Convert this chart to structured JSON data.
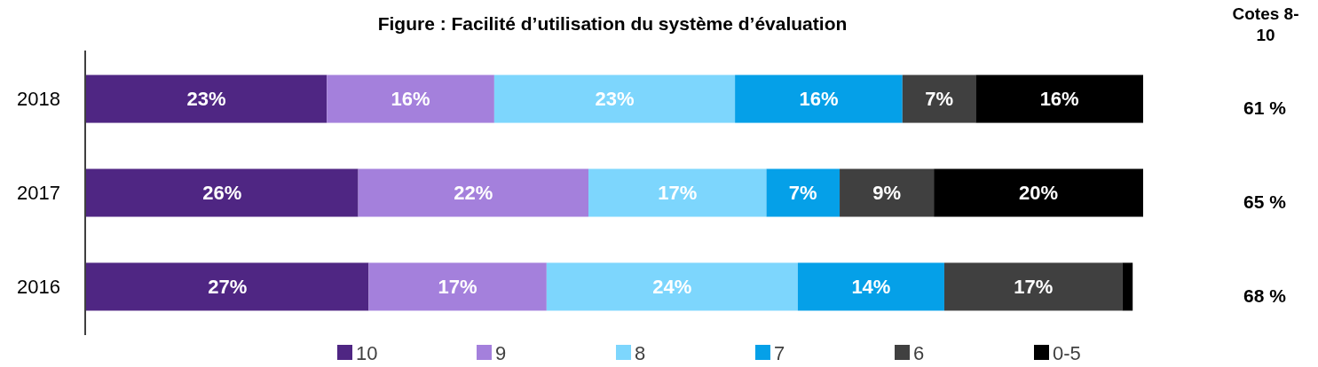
{
  "chart_data": {
    "type": "bar",
    "title": "Figure : Facilité d’utilisation du système d’évaluation",
    "orientation": "horizontal",
    "stacked": true,
    "categories": [
      "2018",
      "2017",
      "2016"
    ],
    "xlim": [
      0,
      101
    ],
    "tick_labels": "y",
    "legend": "bottom",
    "series": [
      {
        "name": "10",
        "color": "#4f2683",
        "values": [
          23,
          26,
          27
        ],
        "value_labels": [
          "23%",
          "26%",
          "27%"
        ]
      },
      {
        "name": "9",
        "color": "#a480dc",
        "values": [
          16,
          22,
          17
        ],
        "value_labels": [
          "16%",
          "22%",
          "17%"
        ]
      },
      {
        "name": "8",
        "color": "#7dd6fd",
        "values": [
          23,
          17,
          24
        ],
        "value_labels": [
          "23%",
          "17%",
          "24%"
        ]
      },
      {
        "name": "7",
        "color": "#05a0e8",
        "values": [
          16,
          7,
          14
        ],
        "value_labels": [
          "16%",
          "7%",
          "14%"
        ]
      },
      {
        "name": "6",
        "color": "#404040",
        "values": [
          7,
          9,
          17
        ],
        "value_labels": [
          "7%",
          "9%",
          "17%"
        ]
      },
      {
        "name": "0-5",
        "color": "#000000",
        "values": [
          16,
          20,
          1
        ],
        "value_labels": [
          "16%",
          "20%",
          null
        ]
      }
    ],
    "annotations": [
      "Cotes 8-10",
      "61 %",
      "65 %",
      "68 %"
    ]
  }
}
